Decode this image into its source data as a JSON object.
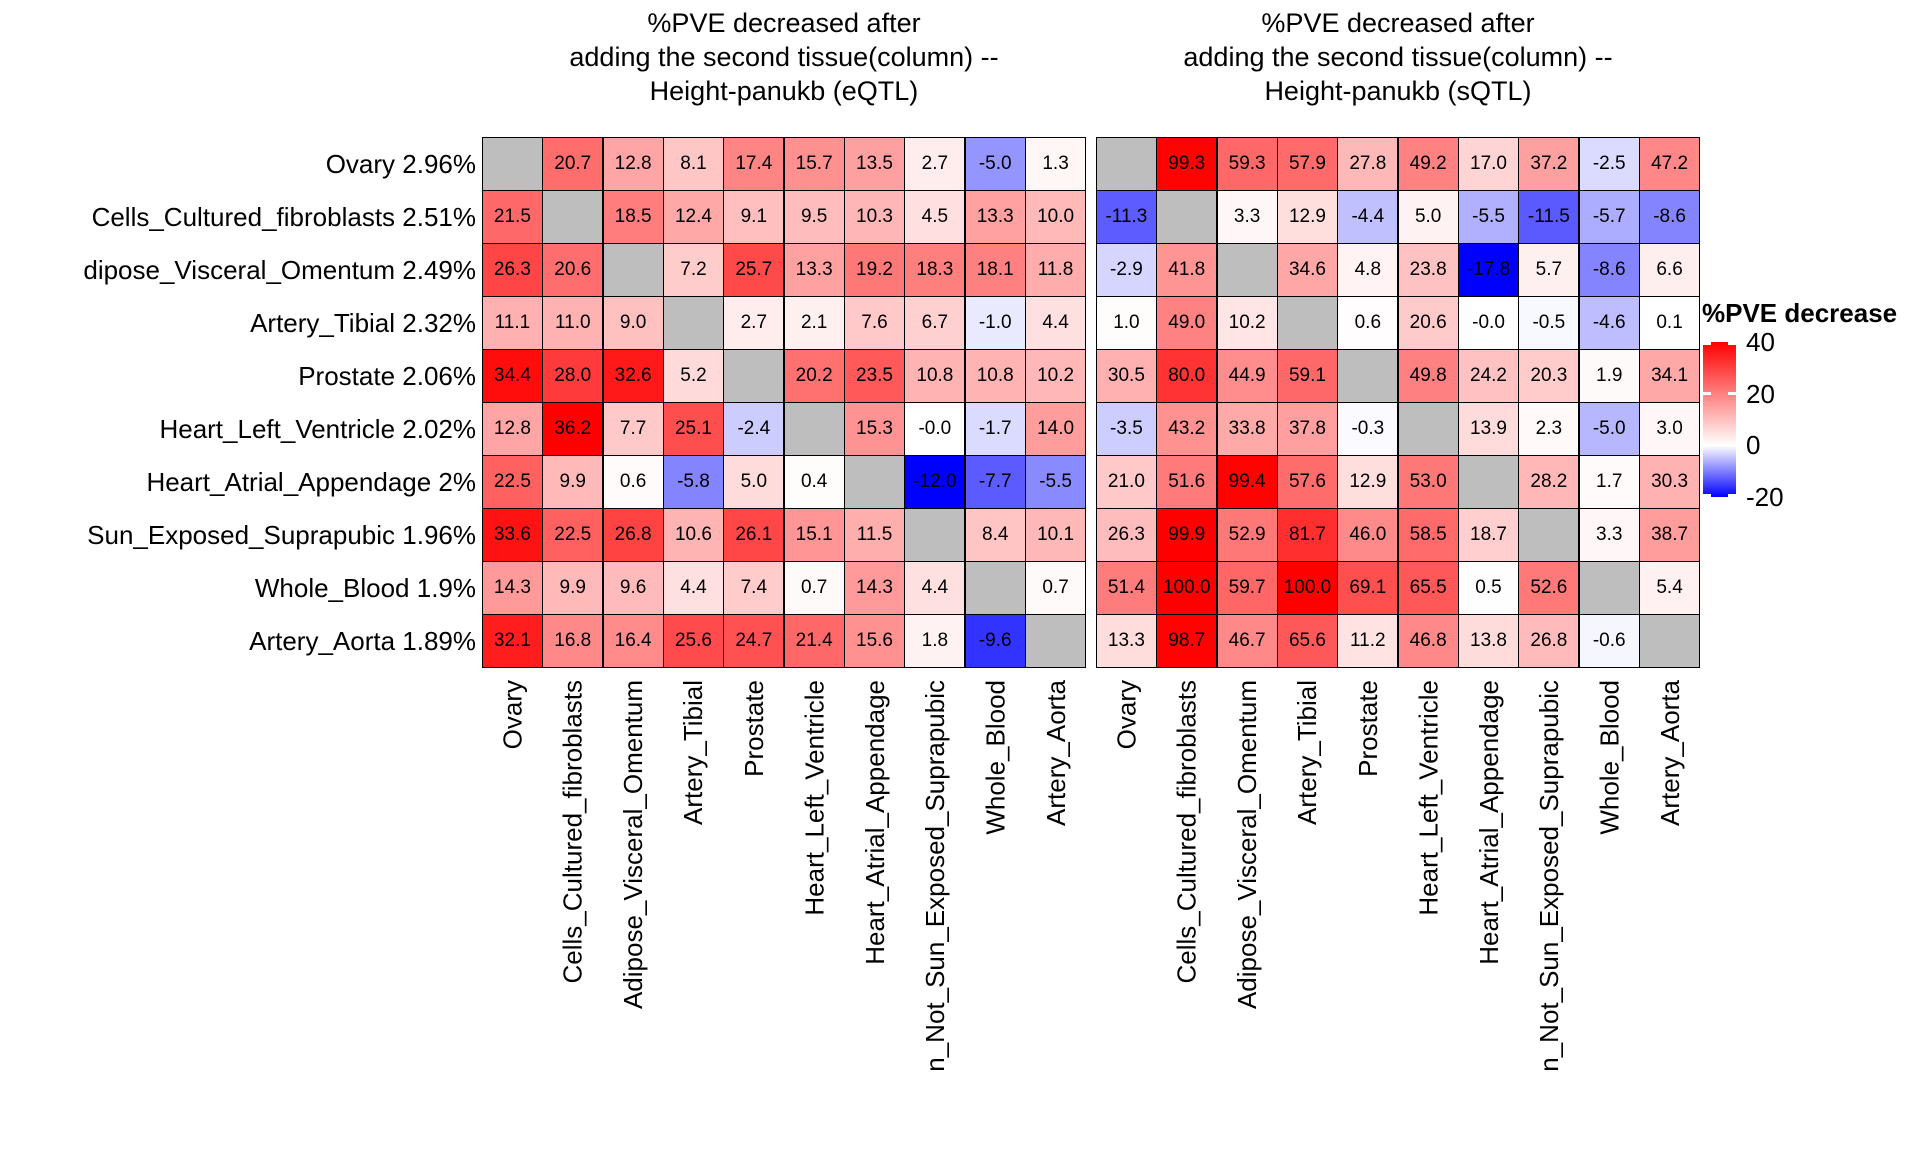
{
  "chart_data": [
    {
      "type": "heatmap",
      "title": "%PVE decreased after adding the second tissue(column) -- Height-panukb (eQTL)",
      "title_lines": [
        "%PVE decreased after",
        "adding the second tissue(column) --",
        "Height-panukb (eQTL)"
      ],
      "row_labels": [
        "Ovary 2.96%",
        "Cells_Cultured_fibroblasts 2.51%",
        "dipose_Visceral_Omentum 2.49%",
        "Artery_Tibial 2.32%",
        "Prostate 2.06%",
        "Heart_Left_Ventricle 2.02%",
        "Heart_Atrial_Appendage 2%",
        "Sun_Exposed_Suprapubic 1.96%",
        "Whole_Blood 1.9%",
        "Artery_Aorta 1.89%"
      ],
      "col_labels": [
        "Ovary",
        "Cells_Cultured_fibroblasts",
        "Adipose_Visceral_Omentum",
        "Artery_Tibial",
        "Prostate",
        "Heart_Left_Ventricle",
        "Heart_Atrial_Appendage",
        "n_Not_Sun_Exposed_Suprapubic",
        "Whole_Blood",
        "Artery_Aorta"
      ],
      "values": [
        [
          null,
          "20.7",
          "12.8",
          "8.1",
          "17.4",
          "15.7",
          "13.5",
          "2.7",
          "-5.0",
          "1.3"
        ],
        [
          "21.5",
          null,
          "18.5",
          "12.4",
          "9.1",
          "9.5",
          "10.3",
          "4.5",
          "13.3",
          "10.0"
        ],
        [
          "26.3",
          "20.6",
          null,
          "7.2",
          "25.7",
          "13.3",
          "19.2",
          "18.3",
          "18.1",
          "11.8"
        ],
        [
          "11.1",
          "11.0",
          "9.0",
          null,
          "2.7",
          "2.1",
          "7.6",
          "6.7",
          "-1.0",
          "4.4"
        ],
        [
          "34.4",
          "28.0",
          "32.6",
          "5.2",
          null,
          "20.2",
          "23.5",
          "10.8",
          "10.8",
          "10.2"
        ],
        [
          "12.8",
          "36.2",
          "7.7",
          "25.1",
          "-2.4",
          null,
          "15.3",
          "-0.0",
          "-1.7",
          "14.0"
        ],
        [
          "22.5",
          "9.9",
          "0.6",
          "-5.8",
          "5.0",
          "0.4",
          null,
          "-12.0",
          "-7.7",
          "-5.5"
        ],
        [
          "33.6",
          "22.5",
          "26.8",
          "10.6",
          "26.1",
          "15.1",
          "11.5",
          null,
          "8.4",
          "10.1"
        ],
        [
          "14.3",
          "9.9",
          "9.6",
          "4.4",
          "7.4",
          "0.7",
          "14.3",
          "4.4",
          null,
          "0.7"
        ],
        [
          "32.1",
          "16.8",
          "16.4",
          "25.6",
          "24.7",
          "21.4",
          "15.6",
          "1.8",
          "-9.6",
          null
        ]
      ]
    },
    {
      "type": "heatmap",
      "title": "%PVE decreased after adding the second tissue(column) -- Height-panukb (sQTL)",
      "title_lines": [
        "%PVE decreased after",
        "adding the second tissue(column) --",
        "Height-panukb (sQTL)"
      ],
      "col_labels": [
        "Ovary",
        "Cells_Cultured_fibroblasts",
        "Adipose_Visceral_Omentum",
        "Artery_Tibial",
        "Prostate",
        "Heart_Left_Ventricle",
        "Heart_Atrial_Appendage",
        "n_Not_Sun_Exposed_Suprapubic",
        "Whole_Blood",
        "Artery_Aorta"
      ],
      "values": [
        [
          null,
          "99.3",
          "59.3",
          "57.9",
          "27.8",
          "49.2",
          "17.0",
          "37.2",
          "-2.5",
          "47.2"
        ],
        [
          "-11.3",
          null,
          "3.3",
          "12.9",
          "-4.4",
          "5.0",
          "-5.5",
          "-11.5",
          "-5.7",
          "-8.6"
        ],
        [
          "-2.9",
          "41.8",
          null,
          "34.6",
          "4.8",
          "23.8",
          "-17.8",
          "5.7",
          "-8.6",
          "6.6"
        ],
        [
          "1.0",
          "49.0",
          "10.2",
          null,
          "0.6",
          "20.6",
          "-0.0",
          "-0.5",
          "-4.6",
          "0.1"
        ],
        [
          "30.5",
          "80.0",
          "44.9",
          "59.1",
          null,
          "49.8",
          "24.2",
          "20.3",
          "1.9",
          "34.1"
        ],
        [
          "-3.5",
          "43.2",
          "33.8",
          "37.8",
          "-0.3",
          null,
          "13.9",
          "2.3",
          "-5.0",
          "3.0"
        ],
        [
          "21.0",
          "51.6",
          "99.4",
          "57.6",
          "12.9",
          "53.0",
          null,
          "28.2",
          "1.7",
          "30.3"
        ],
        [
          "26.3",
          "99.9",
          "52.9",
          "81.7",
          "46.0",
          "58.5",
          "18.7",
          null,
          "3.3",
          "38.7"
        ],
        [
          "51.4",
          "100.0",
          "59.7",
          "100.0",
          "69.1",
          "65.5",
          "0.5",
          "52.6",
          null,
          "5.4"
        ],
        [
          "13.3",
          "98.7",
          "46.7",
          "65.6",
          "11.2",
          "46.8",
          "13.8",
          "26.8",
          "-0.6",
          null
        ]
      ]
    }
  ],
  "legend": {
    "title": "%PVE decrease",
    "tick_labels": [
      "40",
      "20",
      "0",
      "-20"
    ],
    "tick_values": [
      40,
      20,
      0,
      -20
    ],
    "range_max": 40,
    "range_min": -20,
    "gradient_top": "#FF0000",
    "gradient_mid": "#FFFFFF",
    "gradient_bottom": "#0000FF",
    "diagonal_color": "#BEBEBE"
  }
}
